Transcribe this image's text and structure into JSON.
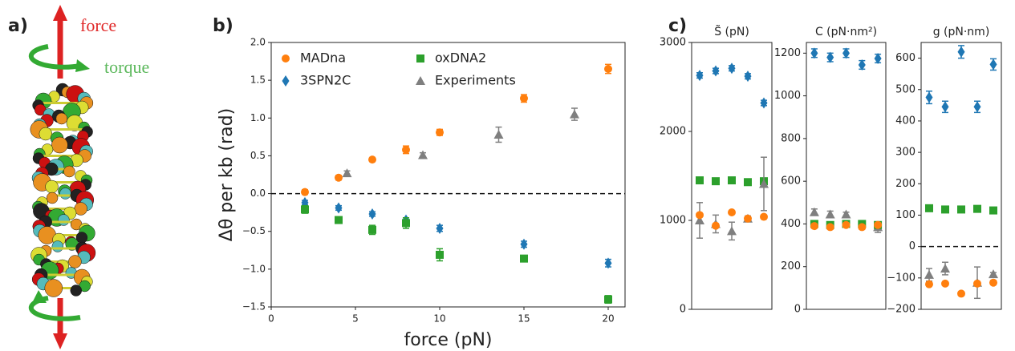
{
  "panel_labels": [
    "a)",
    "b)",
    "c)"
  ],
  "illustration": {
    "force_label": "force",
    "torque_label": "torque"
  },
  "chart_data": [
    {
      "type": "scatter",
      "xlabel": "force (pN)",
      "ylabel": "Δθ per kb (rad)",
      "xlim": [
        0,
        21
      ],
      "xticks": [
        0,
        5,
        10,
        15,
        20
      ],
      "ylim": [
        -1.5,
        2.0
      ],
      "yticks": [
        {
          "value": -1.5,
          "label": "−1.5"
        },
        {
          "value": -1.0,
          "label": "−1.0"
        },
        {
          "value": -0.5,
          "label": "−0.5"
        },
        {
          "value": 0.0,
          "label": "0.0"
        },
        {
          "value": 0.5,
          "label": "0.5"
        },
        {
          "value": 1.0,
          "label": "1.0"
        },
        {
          "value": 1.5,
          "label": "1.5"
        },
        {
          "value": 2.0,
          "label": "2.0"
        }
      ],
      "hline": 0,
      "legend": "upper left",
      "series": [
        {
          "name": "MADna",
          "color": "#ff7f0e",
          "marker": "circle",
          "x": [
            2,
            4,
            6,
            8,
            10,
            15,
            20
          ],
          "values": [
            0.02,
            0.21,
            0.45,
            0.58,
            0.81,
            1.26,
            1.65
          ],
          "errors": [
            0.03,
            0.03,
            0.02,
            0.05,
            0.04,
            0.05,
            0.06
          ]
        },
        {
          "name": "3SPN2C",
          "color": "#1f77b4",
          "marker": "diamond",
          "x": [
            2,
            4,
            6,
            8,
            10,
            15,
            20
          ],
          "values": [
            -0.12,
            -0.19,
            -0.27,
            -0.35,
            -0.46,
            -0.67,
            -0.92
          ],
          "errors": [
            0.03,
            0.03,
            0.03,
            0.03,
            0.04,
            0.04,
            0.05
          ]
        },
        {
          "name": "oxDNA2",
          "color": "#2ca02c",
          "marker": "square",
          "x": [
            2,
            4,
            6,
            8,
            10,
            15,
            20
          ],
          "values": [
            -0.21,
            -0.35,
            -0.48,
            -0.39,
            -0.81,
            -0.86,
            -1.4
          ],
          "errors": [
            0.05,
            0.04,
            0.06,
            0.07,
            0.08,
            0.03,
            0.05
          ]
        },
        {
          "name": "Experiments",
          "color": "#7f7f7f",
          "marker": "triangle",
          "x": [
            4.5,
            9,
            13.5,
            18
          ],
          "values": [
            0.27,
            0.51,
            0.78,
            1.05
          ],
          "errors": [
            0.03,
            0.03,
            0.1,
            0.08
          ]
        }
      ]
    },
    {
      "type": "scatter",
      "title": "S̃ (pN)",
      "categories": [
        null,
        null,
        null,
        null,
        null
      ],
      "ylim": [
        0,
        3000
      ],
      "yticks": [
        0,
        1000,
        2000,
        3000
      ],
      "series": [
        {
          "color": "#1f77b4",
          "marker": "diamond",
          "values": [
            2630,
            2680,
            2710,
            2620,
            2320
          ],
          "errors": [
            30,
            30,
            30,
            30,
            30
          ]
        },
        {
          "color": "#2ca02c",
          "marker": "square",
          "values": [
            1450,
            1440,
            1450,
            1430,
            1440
          ],
          "errors": [
            20,
            20,
            20,
            20,
            20
          ]
        },
        {
          "color": "#7f7f7f",
          "marker": "triangle",
          "values": [
            1000,
            960,
            880,
            1020,
            1410
          ],
          "errors": [
            200,
            100,
            100,
            30,
            300
          ]
        },
        {
          "color": "#ff7f0e",
          "marker": "circle",
          "values": [
            1060,
            940,
            1090,
            1020,
            1040
          ],
          "errors": [
            20,
            20,
            20,
            20,
            20
          ]
        }
      ]
    },
    {
      "type": "scatter",
      "title": "C (pN·nm²)",
      "categories": [
        null,
        null,
        null,
        null,
        null
      ],
      "ylim": [
        0,
        1250
      ],
      "yticks": [
        0,
        200,
        400,
        600,
        800,
        1000,
        1200
      ],
      "series": [
        {
          "color": "#1f77b4",
          "marker": "diamond",
          "values": [
            1200,
            1180,
            1200,
            1145,
            1175
          ],
          "errors": [
            20,
            20,
            20,
            20,
            20
          ]
        },
        {
          "color": "#7f7f7f",
          "marker": "triangle",
          "values": [
            455,
            445,
            445,
            null,
            385
          ],
          "errors": [
            15,
            15,
            10,
            null,
            25
          ]
        },
        {
          "color": "#2ca02c",
          "marker": "square",
          "values": [
            400,
            395,
            400,
            400,
            395
          ],
          "errors": [
            10,
            10,
            10,
            10,
            10
          ]
        },
        {
          "color": "#ff7f0e",
          "marker": "circle",
          "values": [
            390,
            385,
            395,
            385,
            395
          ],
          "errors": [
            10,
            10,
            10,
            10,
            10
          ]
        }
      ]
    },
    {
      "type": "scatter",
      "title": "g (pN·nm)",
      "categories": [
        null,
        null,
        null,
        null,
        null
      ],
      "ylim": [
        -200,
        650
      ],
      "yticks": [
        {
          "value": -200,
          "label": "−200"
        },
        {
          "value": -100,
          "label": "−100"
        },
        0,
        100,
        200,
        300,
        400,
        500,
        600
      ],
      "hline": 0,
      "series": [
        {
          "color": "#1f77b4",
          "marker": "diamond",
          "values": [
            475,
            445,
            620,
            445,
            580
          ],
          "errors": [
            20,
            18,
            20,
            18,
            18
          ]
        },
        {
          "color": "#2ca02c",
          "marker": "square",
          "values": [
            122,
            118,
            118,
            120,
            115
          ],
          "errors": [
            6,
            6,
            6,
            6,
            6
          ]
        },
        {
          "color": "#7f7f7f",
          "marker": "triangle",
          "values": [
            -90,
            -70,
            null,
            -115,
            -88
          ],
          "errors": [
            20,
            20,
            null,
            50,
            5
          ]
        },
        {
          "color": "#ff7f0e",
          "marker": "circle",
          "values": [
            -120,
            -118,
            -150,
            -118,
            -115
          ],
          "errors": [
            6,
            6,
            6,
            6,
            6
          ]
        }
      ]
    }
  ]
}
